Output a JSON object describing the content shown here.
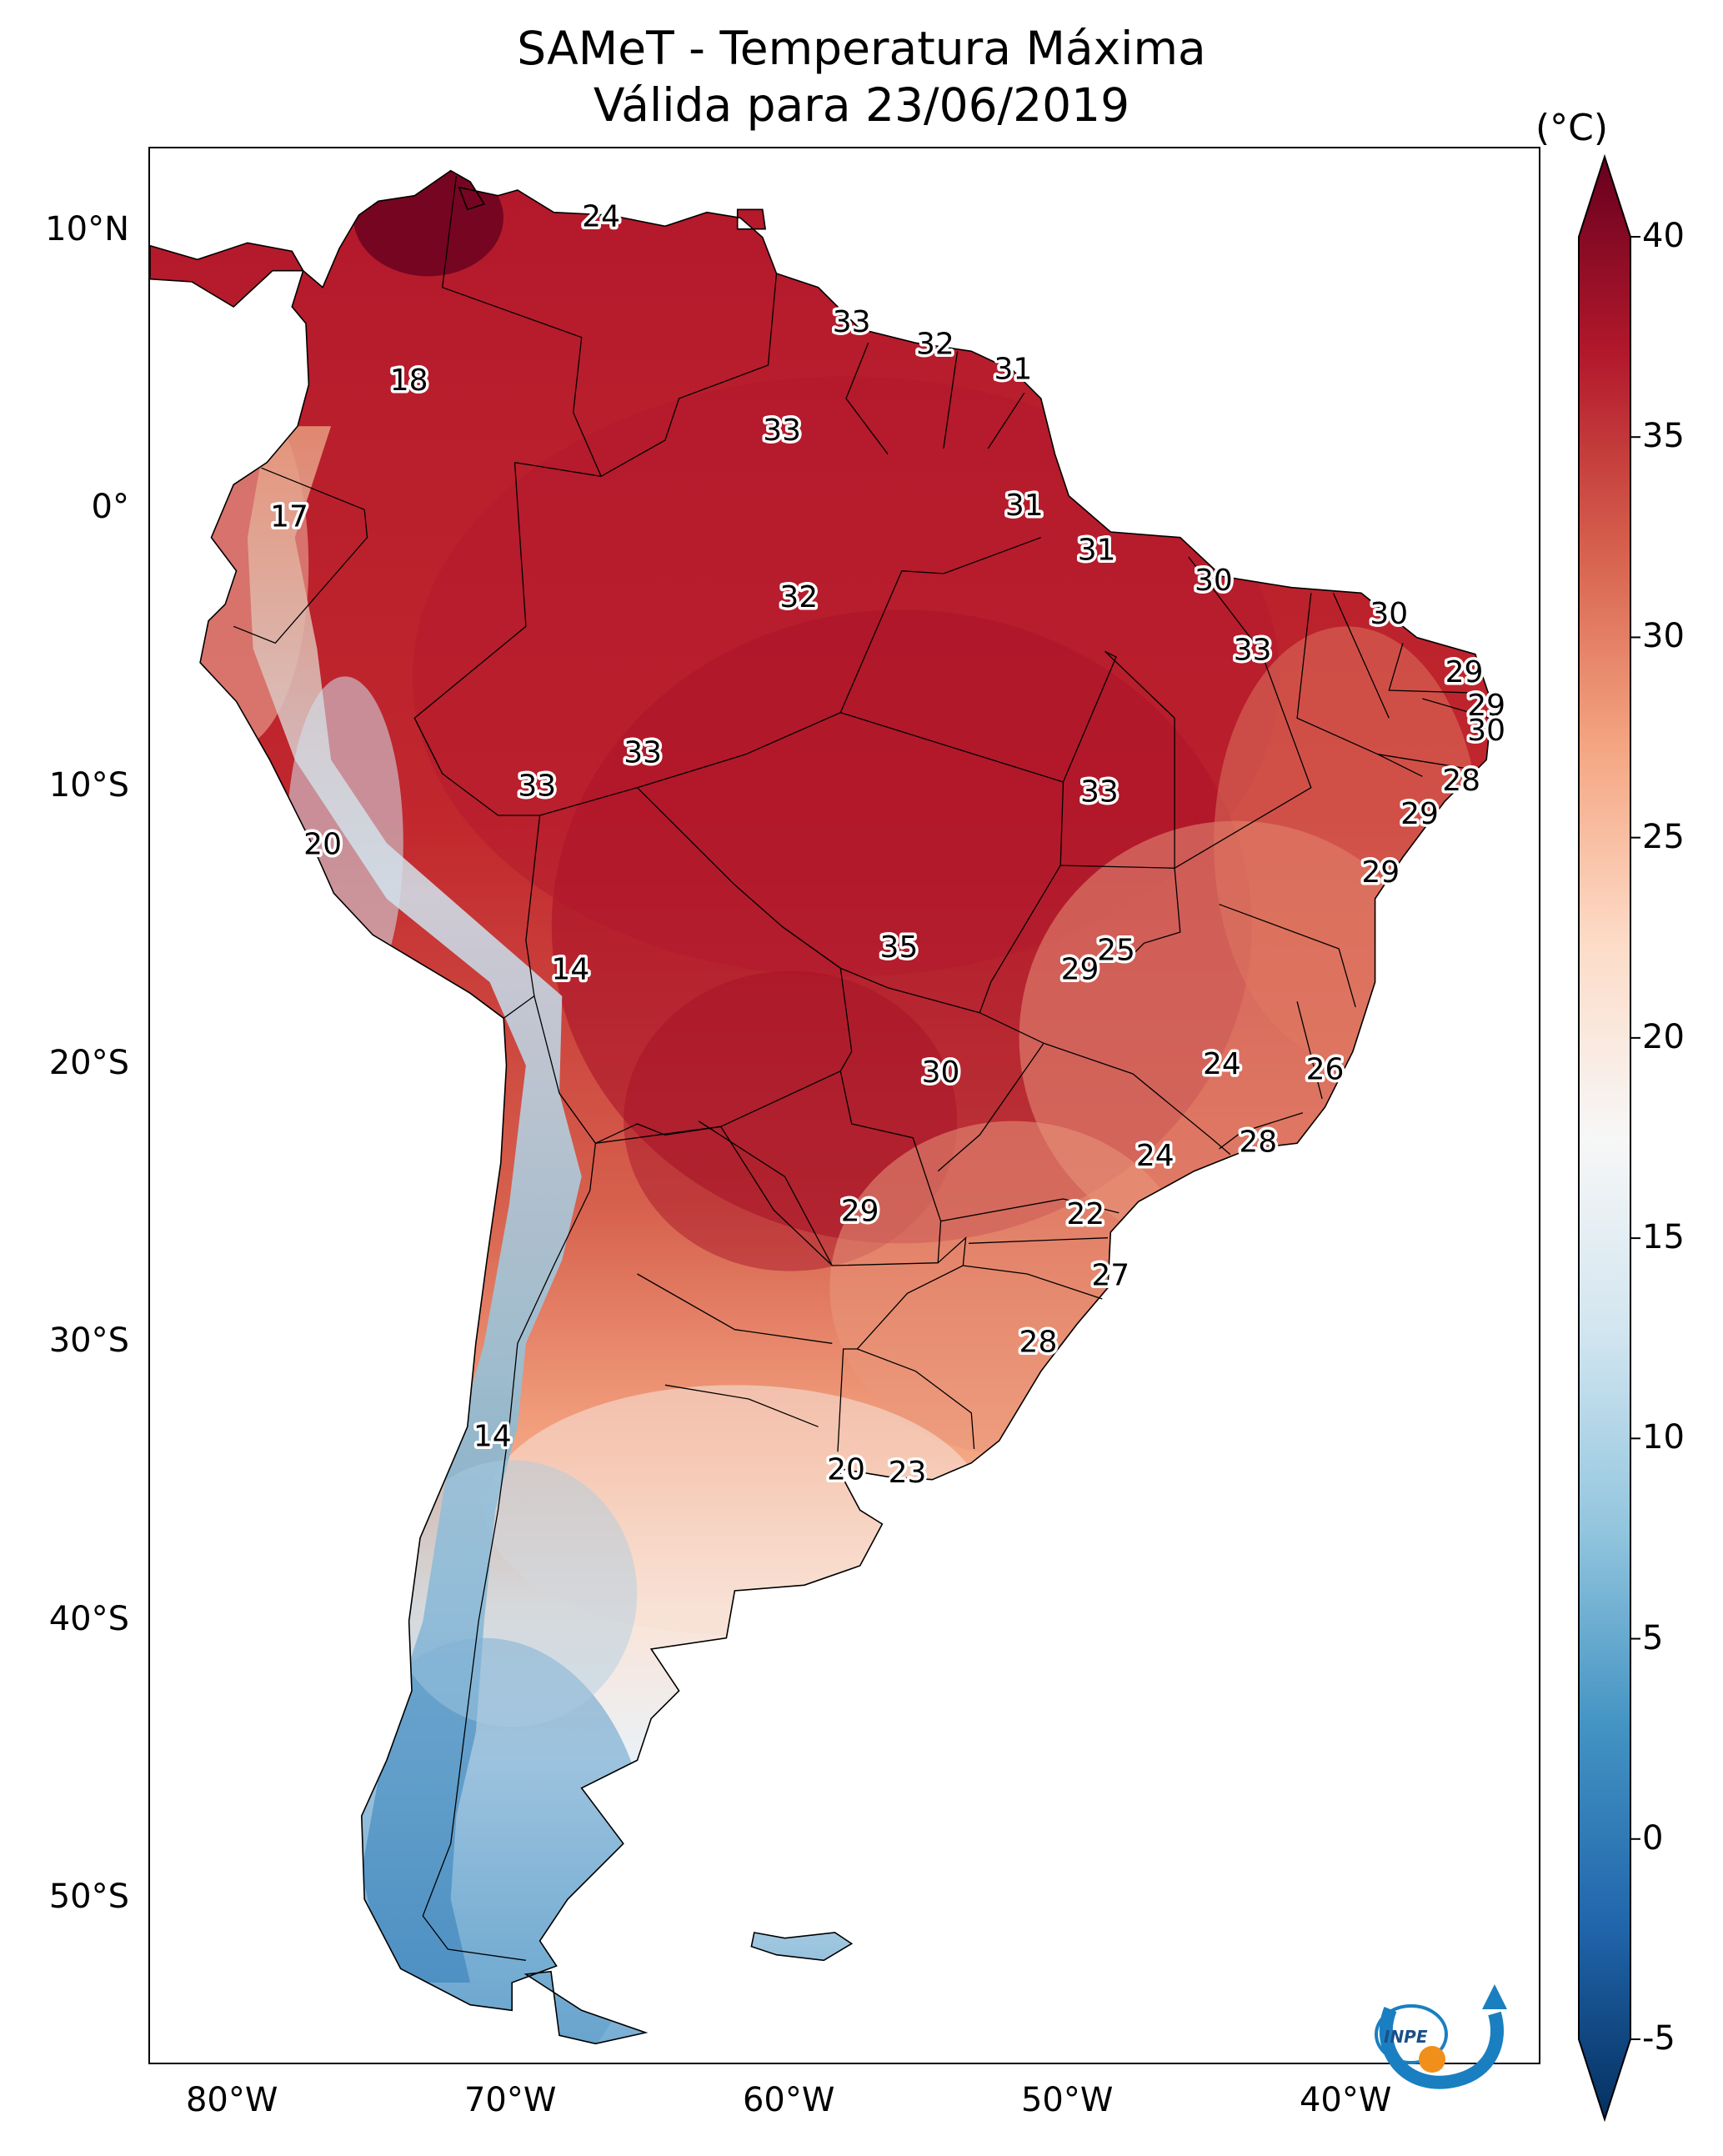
{
  "title": {
    "line1": "SAMeT - Temperatura Máxima",
    "line2": "Válida para 23/06/2019"
  },
  "map": {
    "lat_ticks": [
      {
        "label": "10°N",
        "lat": 10
      },
      {
        "label": "0°",
        "lat": 0
      },
      {
        "label": "10°S",
        "lat": -10
      },
      {
        "label": "20°S",
        "lat": -20
      },
      {
        "label": "30°S",
        "lat": -30
      },
      {
        "label": "40°S",
        "lat": -40
      },
      {
        "label": "50°S",
        "lat": -50
      }
    ],
    "lon_ticks": [
      {
        "label": "80°W",
        "lon": -80
      },
      {
        "label": "70°W",
        "lon": -70
      },
      {
        "label": "60°W",
        "lon": -60
      },
      {
        "label": "50°W",
        "lon": -50
      },
      {
        "label": "40°W",
        "lon": -40
      }
    ],
    "extent": {
      "lon_min": -83,
      "lon_max": -33,
      "lat_min": -56,
      "lat_max": 13
    },
    "station_labels": [
      {
        "value": "24",
        "lon": -66.8,
        "lat": 10.5
      },
      {
        "value": "33",
        "lon": -57.8,
        "lat": 6.7
      },
      {
        "value": "32",
        "lon": -54.8,
        "lat": 5.9
      },
      {
        "value": "31",
        "lon": -52.0,
        "lat": 5.0
      },
      {
        "value": "18",
        "lon": -73.7,
        "lat": 4.6
      },
      {
        "value": "33",
        "lon": -60.3,
        "lat": 2.8
      },
      {
        "value": "31",
        "lon": -51.6,
        "lat": 0.1
      },
      {
        "value": "17",
        "lon": -78.0,
        "lat": -0.3
      },
      {
        "value": "31",
        "lon": -49.0,
        "lat": -1.5
      },
      {
        "value": "30",
        "lon": -44.8,
        "lat": -2.6
      },
      {
        "value": "32",
        "lon": -59.7,
        "lat": -3.2
      },
      {
        "value": "30",
        "lon": -38.5,
        "lat": -3.8
      },
      {
        "value": "33",
        "lon": -43.4,
        "lat": -5.1
      },
      {
        "value": "29",
        "lon": -35.8,
        "lat": -5.9
      },
      {
        "value": "29",
        "lon": -35.0,
        "lat": -7.1
      },
      {
        "value": "30",
        "lon": -35.0,
        "lat": -8.0
      },
      {
        "value": "33",
        "lon": -65.3,
        "lat": -8.8
      },
      {
        "value": "28",
        "lon": -35.9,
        "lat": -9.8
      },
      {
        "value": "33",
        "lon": -69.1,
        "lat": -10.0
      },
      {
        "value": "33",
        "lon": -48.9,
        "lat": -10.2
      },
      {
        "value": "29",
        "lon": -37.4,
        "lat": -11.0
      },
      {
        "value": "20",
        "lon": -76.8,
        "lat": -12.1
      },
      {
        "value": "29",
        "lon": -38.8,
        "lat": -13.1
      },
      {
        "value": "25",
        "lon": -48.3,
        "lat": -15.9
      },
      {
        "value": "35",
        "lon": -56.1,
        "lat": -15.8
      },
      {
        "value": "29",
        "lon": -49.6,
        "lat": -16.6
      },
      {
        "value": "14",
        "lon": -67.9,
        "lat": -16.6
      },
      {
        "value": "24",
        "lon": -44.5,
        "lat": -20.0
      },
      {
        "value": "26",
        "lon": -40.8,
        "lat": -20.2
      },
      {
        "value": "30",
        "lon": -54.6,
        "lat": -20.3
      },
      {
        "value": "28",
        "lon": -43.2,
        "lat": -22.8
      },
      {
        "value": "24",
        "lon": -46.9,
        "lat": -23.3
      },
      {
        "value": "29",
        "lon": -57.5,
        "lat": -25.3
      },
      {
        "value": "22",
        "lon": -49.4,
        "lat": -25.4
      },
      {
        "value": "27",
        "lon": -48.5,
        "lat": -27.6
      },
      {
        "value": "28",
        "lon": -51.1,
        "lat": -30.0
      },
      {
        "value": "14",
        "lon": -70.7,
        "lat": -33.4
      },
      {
        "value": "20",
        "lon": -58.0,
        "lat": -34.6
      },
      {
        "value": "23",
        "lon": -55.8,
        "lat": -34.7
      }
    ]
  },
  "colorbar": {
    "unit": "(°C)",
    "min": -5,
    "max": 40,
    "extend_min": -7,
    "extend_max": 42,
    "ticks": [
      {
        "label": "40",
        "value": 40
      },
      {
        "label": "35",
        "value": 35
      },
      {
        "label": "30",
        "value": 30
      },
      {
        "label": "25",
        "value": 25
      },
      {
        "label": "20",
        "value": 20
      },
      {
        "label": "15",
        "value": 15
      },
      {
        "label": "10",
        "value": 10
      },
      {
        "label": "5",
        "value": 5
      },
      {
        "label": "0",
        "value": 0
      },
      {
        "label": "-5",
        "value": -5
      }
    ],
    "colors": [
      "#053061",
      "#2166ac",
      "#4393c3",
      "#92c5de",
      "#d1e5f0",
      "#f7f7f7",
      "#fddbc7",
      "#f4a582",
      "#d6604d",
      "#b2182b",
      "#67001f"
    ]
  },
  "logo": {
    "text": "INPE",
    "blue": "#1a7fc1",
    "orange": "#f0901a"
  }
}
